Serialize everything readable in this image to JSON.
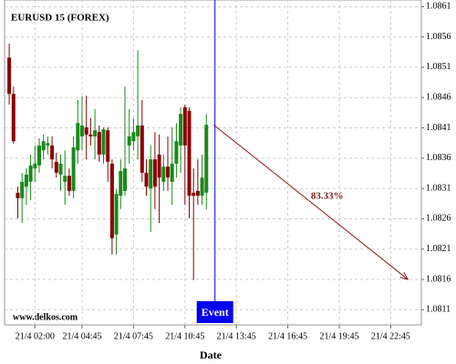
{
  "chart_data": {
    "type": "candlestick",
    "title": "EURUSD 15 (FOREX)",
    "xlabel": "Date",
    "watermark": "www.delkos.com",
    "x": [
      "21/4 00:30",
      "21/4 00:45",
      "21/4 01:00",
      "21/4 01:15",
      "21/4 01:30",
      "21/4 01:45",
      "21/4 02:00",
      "21/4 02:15",
      "21/4 02:30",
      "21/4 02:45",
      "21/4 03:00",
      "21/4 03:15",
      "21/4 03:30",
      "21/4 03:45",
      "21/4 04:00",
      "21/4 04:15",
      "21/4 04:30",
      "21/4 04:45",
      "21/4 05:00",
      "21/4 05:15",
      "21/4 05:30",
      "21/4 05:45",
      "21/4 06:00",
      "21/4 06:15",
      "21/4 06:30",
      "21/4 06:45",
      "21/4 07:00",
      "21/4 07:15",
      "21/4 07:30",
      "21/4 07:45",
      "21/4 08:00",
      "21/4 08:15",
      "21/4 08:30",
      "21/4 08:45",
      "21/4 09:00",
      "21/4 09:15",
      "21/4 09:30",
      "21/4 09:45",
      "21/4 10:00",
      "21/4 10:15",
      "21/4 10:30",
      "21/4 10:45",
      "21/4 11:00",
      "21/4 11:15",
      "21/4 11:30",
      "21/4 11:45",
      "21/4 12:00"
    ],
    "open": [
      1.08526,
      1.08466,
      1.08303,
      1.08294,
      1.08313,
      1.08321,
      1.08343,
      1.08348,
      1.08373,
      1.08381,
      1.08381,
      1.08354,
      1.08333,
      1.08321,
      1.08331,
      1.08306,
      1.08373,
      1.08396,
      1.08411,
      1.08399,
      1.08396,
      1.08403,
      1.08366,
      1.08406,
      1.08351,
      1.08234,
      1.08298,
      1.08306,
      1.08381,
      1.08388,
      1.08396,
      1.08414,
      1.08336,
      1.0831,
      1.08358,
      1.08366,
      1.08321,
      1.08346,
      1.08321,
      1.08351,
      1.08381,
      1.08444,
      1.08438,
      1.08303,
      1.08306,
      1.08298,
      1.08303
    ],
    "high": [
      1.08549,
      1.08478,
      1.08313,
      1.08336,
      1.08343,
      1.08366,
      1.08381,
      1.08393,
      1.08399,
      1.08396,
      1.08396,
      1.08369,
      1.08366,
      1.08373,
      1.08343,
      1.08396,
      1.08456,
      1.08462,
      1.08463,
      1.08426,
      1.08441,
      1.08414,
      1.08411,
      1.08411,
      1.08358,
      1.08309,
      1.08358,
      1.08478,
      1.08441,
      1.08426,
      1.08538,
      1.08456,
      1.08358,
      1.08381,
      1.08403,
      1.08399,
      1.08366,
      1.08396,
      1.08411,
      1.08418,
      1.08444,
      1.08448,
      1.08444,
      1.08343,
      1.08358,
      1.08366,
      1.08433
    ],
    "low": [
      1.08448,
      1.08384,
      1.08261,
      1.08253,
      1.08283,
      1.08291,
      1.08321,
      1.08336,
      1.08358,
      1.08366,
      1.08343,
      1.08328,
      1.08306,
      1.08283,
      1.08298,
      1.08294,
      1.08351,
      1.08373,
      1.08358,
      1.08381,
      1.08358,
      1.08354,
      1.08351,
      1.08321,
      1.08201,
      1.08201,
      1.08276,
      1.08298,
      1.08351,
      1.08373,
      1.08358,
      1.08321,
      1.08298,
      1.08238,
      1.08276,
      1.08253,
      1.08306,
      1.08306,
      1.08283,
      1.08328,
      1.08336,
      1.08283,
      1.08261,
      1.08159,
      1.08283,
      1.08283,
      1.08276
    ],
    "close": [
      1.08466,
      1.08388,
      1.08294,
      1.08321,
      1.08333,
      1.08348,
      1.08351,
      1.08381,
      1.08388,
      1.08385,
      1.08358,
      1.08336,
      1.08351,
      1.08331,
      1.08306,
      1.08378,
      1.08418,
      1.08414,
      1.08399,
      1.08396,
      1.08406,
      1.08366,
      1.08408,
      1.08354,
      1.08228,
      1.08301,
      1.08339,
      1.08343,
      1.08396,
      1.08403,
      1.08414,
      1.08336,
      1.08313,
      1.08358,
      1.08313,
      1.08328,
      1.08346,
      1.08328,
      1.08351,
      1.08388,
      1.08433,
      1.08381,
      1.08298,
      1.08298,
      1.08298,
      1.08328,
      1.08415
    ],
    "up_color": "#1a8a1a",
    "down_color": "#8b0000",
    "ylim": [
      1.08085,
      1.08621
    ],
    "yticks": [
      1.0861,
      1.0856,
      1.0851,
      1.0846,
      1.0841,
      1.0836,
      1.0831,
      1.0826,
      1.0821,
      1.0816,
      1.0811
    ],
    "xticks": [
      "21/4 02:00",
      "21/4 04:45",
      "21/4 07:45",
      "21/4 10:45",
      "21/4 13:45",
      "21/4 16:45",
      "21/4 19:45",
      "21/4 22:45"
    ],
    "grid": true,
    "event": {
      "label": "Event",
      "x": "21/4 12:30",
      "color": "#0000ee"
    },
    "forecast": {
      "label": "83.33%",
      "x": "21/4 23:45",
      "value": 1.0816,
      "color": "#8b1a1a"
    }
  }
}
